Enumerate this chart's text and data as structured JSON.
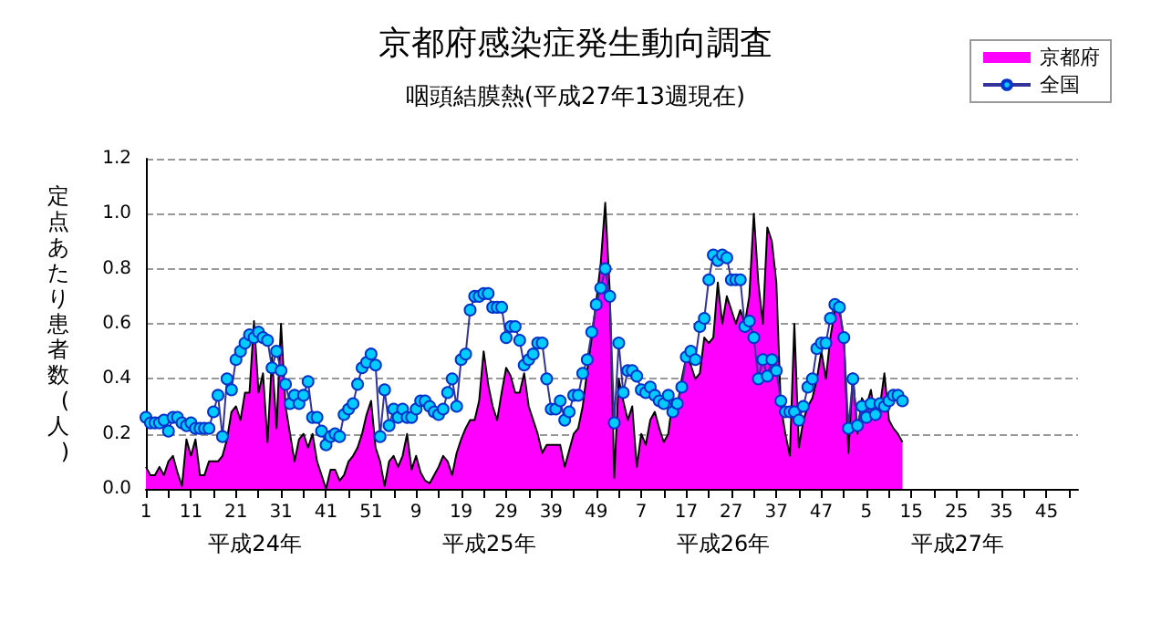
{
  "chart_data": {
    "type": "line",
    "title": "京都府感染症発生動向調査",
    "subtitle": "咽頭結膜熱(平成27年13週現在)",
    "ylabel": "定点あたり患者数(人)",
    "annotations": [
      "平成24年",
      "平成25年",
      "平成26年",
      "平成27年"
    ],
    "categories": [
      "1",
      null,
      null,
      null,
      null,
      null,
      null,
      null,
      null,
      null,
      "11",
      null,
      null,
      null,
      null,
      null,
      null,
      null,
      null,
      null,
      "21",
      null,
      null,
      null,
      null,
      null,
      null,
      null,
      null,
      null,
      "31",
      null,
      null,
      null,
      null,
      null,
      null,
      null,
      null,
      null,
      "41",
      null,
      null,
      null,
      null,
      null,
      null,
      null,
      null,
      null,
      "51",
      null,
      null,
      null,
      null,
      null,
      null,
      null,
      null,
      null,
      "9",
      null,
      null,
      null,
      null,
      null,
      null,
      null,
      null,
      null,
      "19",
      null,
      null,
      null,
      null,
      null,
      null,
      null,
      null,
      null,
      "29",
      null,
      null,
      null,
      null,
      null,
      null,
      null,
      null,
      null,
      "39",
      null,
      null,
      null,
      null,
      null,
      null,
      null,
      null,
      null,
      "49",
      null,
      null,
      null,
      null,
      null,
      null,
      null,
      null,
      null,
      "7",
      null,
      null,
      null,
      null,
      null,
      null,
      null,
      null,
      null,
      "17",
      null,
      null,
      null,
      null,
      null,
      null,
      null,
      null,
      null,
      "27",
      null,
      null,
      null,
      null,
      null,
      null,
      null,
      null,
      null,
      "37",
      null,
      null,
      null,
      null,
      null,
      null,
      null,
      null,
      null,
      "47",
      null,
      null,
      null,
      null,
      null,
      null,
      null,
      null,
      null,
      "5",
      null,
      null,
      null,
      null,
      null,
      null,
      null,
      null,
      null,
      "15",
      null,
      null,
      null,
      null,
      null,
      null,
      null,
      null,
      null,
      "25",
      null,
      null,
      null,
      null,
      null,
      null,
      null,
      null,
      null,
      "35",
      null,
      null,
      null,
      null,
      null,
      null,
      null,
      null,
      null,
      "45",
      null,
      null,
      null,
      null,
      null,
      null,
      null
    ],
    "series": [
      {
        "name": "京都府",
        "type": "area",
        "color": "#ff00ff",
        "marker": "none",
        "values": [
          0.08,
          0.05,
          0.05,
          0.08,
          0.05,
          0.1,
          0.12,
          0.06,
          0.01,
          0.18,
          0.12,
          0.18,
          0.05,
          0.05,
          0.1,
          0.1,
          0.1,
          0.12,
          0.18,
          0.28,
          0.3,
          0.25,
          0.35,
          0.35,
          0.61,
          0.35,
          0.42,
          0.17,
          0.48,
          0.22,
          0.6,
          0.3,
          0.2,
          0.1,
          0.18,
          0.2,
          0.15,
          0.2,
          0.1,
          0.05,
          0.0,
          0.07,
          0.07,
          0.03,
          0.05,
          0.1,
          0.12,
          0.15,
          0.2,
          0.27,
          0.32,
          0.15,
          0.1,
          0.01,
          0.1,
          0.12,
          0.08,
          0.12,
          0.2,
          0.07,
          0.12,
          0.06,
          0.03,
          0.02,
          0.05,
          0.08,
          0.12,
          0.1,
          0.05,
          0.13,
          0.18,
          0.22,
          0.25,
          0.25,
          0.32,
          0.5,
          0.38,
          0.3,
          0.25,
          0.35,
          0.44,
          0.41,
          0.35,
          0.35,
          0.42,
          0.3,
          0.25,
          0.2,
          0.13,
          0.16,
          0.16,
          0.16,
          0.16,
          0.08,
          0.14,
          0.2,
          0.22,
          0.3,
          0.43,
          0.55,
          0.68,
          0.82,
          1.04,
          0.72,
          0.04,
          0.4,
          0.32,
          0.25,
          0.3,
          0.08,
          0.2,
          0.16,
          0.25,
          0.28,
          0.22,
          0.17,
          0.2,
          0.33,
          0.3,
          0.4,
          0.48,
          0.45,
          0.4,
          0.42,
          0.55,
          0.53,
          0.55,
          0.75,
          0.6,
          0.7,
          0.65,
          0.6,
          0.65,
          0.6,
          0.7,
          1.0,
          0.75,
          0.6,
          0.95,
          0.9,
          0.75,
          0.3,
          0.2,
          0.12,
          0.6,
          0.15,
          0.25,
          0.3,
          0.33,
          0.4,
          0.5,
          0.4,
          0.55,
          0.65,
          0.65,
          0.55,
          0.13,
          0.42,
          0.2,
          0.33,
          0.3,
          0.36,
          0.25,
          0.3,
          0.42,
          0.25,
          0.22,
          0.2,
          0.17,
          null,
          null,
          null,
          null,
          null,
          null,
          null,
          null,
          null,
          null,
          null,
          null,
          null,
          null,
          null,
          null,
          null,
          null,
          null,
          null,
          null,
          null,
          null,
          null,
          null,
          null,
          null,
          null,
          null,
          null,
          null,
          null,
          null,
          null,
          null,
          null,
          null,
          null,
          null
        ]
      },
      {
        "name": "全国",
        "color": "#00ccff",
        "marker": "circle",
        "values": [
          0.26,
          0.24,
          0.24,
          0.24,
          0.25,
          0.21,
          0.26,
          0.26,
          0.24,
          0.23,
          0.24,
          0.22,
          0.22,
          0.22,
          0.22,
          0.28,
          0.34,
          0.19,
          0.4,
          0.36,
          0.47,
          0.5,
          0.53,
          0.56,
          0.55,
          0.57,
          0.55,
          0.54,
          0.44,
          0.5,
          0.43,
          0.38,
          0.31,
          0.34,
          0.31,
          0.34,
          0.39,
          0.26,
          0.26,
          0.21,
          0.16,
          0.19,
          0.2,
          0.19,
          0.27,
          0.29,
          0.31,
          0.38,
          0.44,
          0.46,
          0.49,
          0.45,
          0.19,
          0.36,
          0.23,
          0.29,
          0.26,
          0.29,
          0.26,
          0.26,
          0.29,
          0.32,
          0.32,
          0.3,
          0.28,
          0.27,
          0.29,
          0.35,
          0.4,
          0.3,
          0.47,
          0.49,
          0.65,
          0.7,
          0.7,
          0.71,
          0.71,
          0.66,
          0.66,
          0.66,
          0.55,
          0.59,
          0.59,
          0.54,
          0.45,
          0.47,
          0.49,
          0.53,
          0.53,
          0.4,
          0.29,
          0.29,
          0.32,
          0.25,
          0.28,
          0.34,
          0.34,
          0.42,
          0.47,
          0.57,
          0.67,
          0.73,
          0.8,
          0.7,
          0.24,
          0.53,
          0.35,
          0.43,
          0.43,
          0.41,
          0.36,
          0.35,
          0.37,
          0.34,
          0.32,
          0.31,
          0.34,
          0.28,
          0.31,
          0.37,
          0.48,
          0.5,
          0.47,
          0.59,
          0.62,
          0.76,
          0.85,
          0.83,
          0.85,
          0.84,
          0.76,
          0.76,
          0.76,
          0.59,
          0.61,
          0.55,
          0.4,
          0.47,
          0.41,
          0.47,
          0.43,
          0.32,
          0.28,
          0.28,
          0.28,
          0.25,
          0.3,
          0.37,
          0.4,
          0.51,
          0.53,
          0.53,
          0.62,
          0.67,
          0.66,
          0.55,
          0.22,
          0.4,
          0.23,
          0.3,
          0.26,
          0.31,
          0.27,
          0.31,
          0.3,
          0.32,
          0.34,
          0.34,
          0.32,
          null,
          null,
          null,
          null,
          null,
          null,
          null,
          null,
          null,
          null,
          null,
          null,
          null,
          null,
          null,
          null,
          null,
          null,
          null,
          null,
          null,
          null,
          null,
          null,
          null,
          null,
          null,
          null,
          null,
          null,
          null,
          null,
          null,
          null,
          null,
          null,
          null,
          null,
          null
        ]
      }
    ],
    "ylim": [
      0,
      1.2
    ],
    "yticks": [
      {
        "value": 0,
        "label": "0.0"
      },
      {
        "value": 0.2,
        "label": "0.2"
      },
      {
        "value": 0.4,
        "label": "0.4"
      },
      {
        "value": 0.6,
        "label": "0.6"
      },
      {
        "value": 0.8,
        "label": "0.8"
      },
      {
        "value": 1.0,
        "label": "1.0"
      },
      {
        "value": 1.2,
        "label": "1.2"
      }
    ],
    "grid": "y",
    "legend": "top right"
  }
}
